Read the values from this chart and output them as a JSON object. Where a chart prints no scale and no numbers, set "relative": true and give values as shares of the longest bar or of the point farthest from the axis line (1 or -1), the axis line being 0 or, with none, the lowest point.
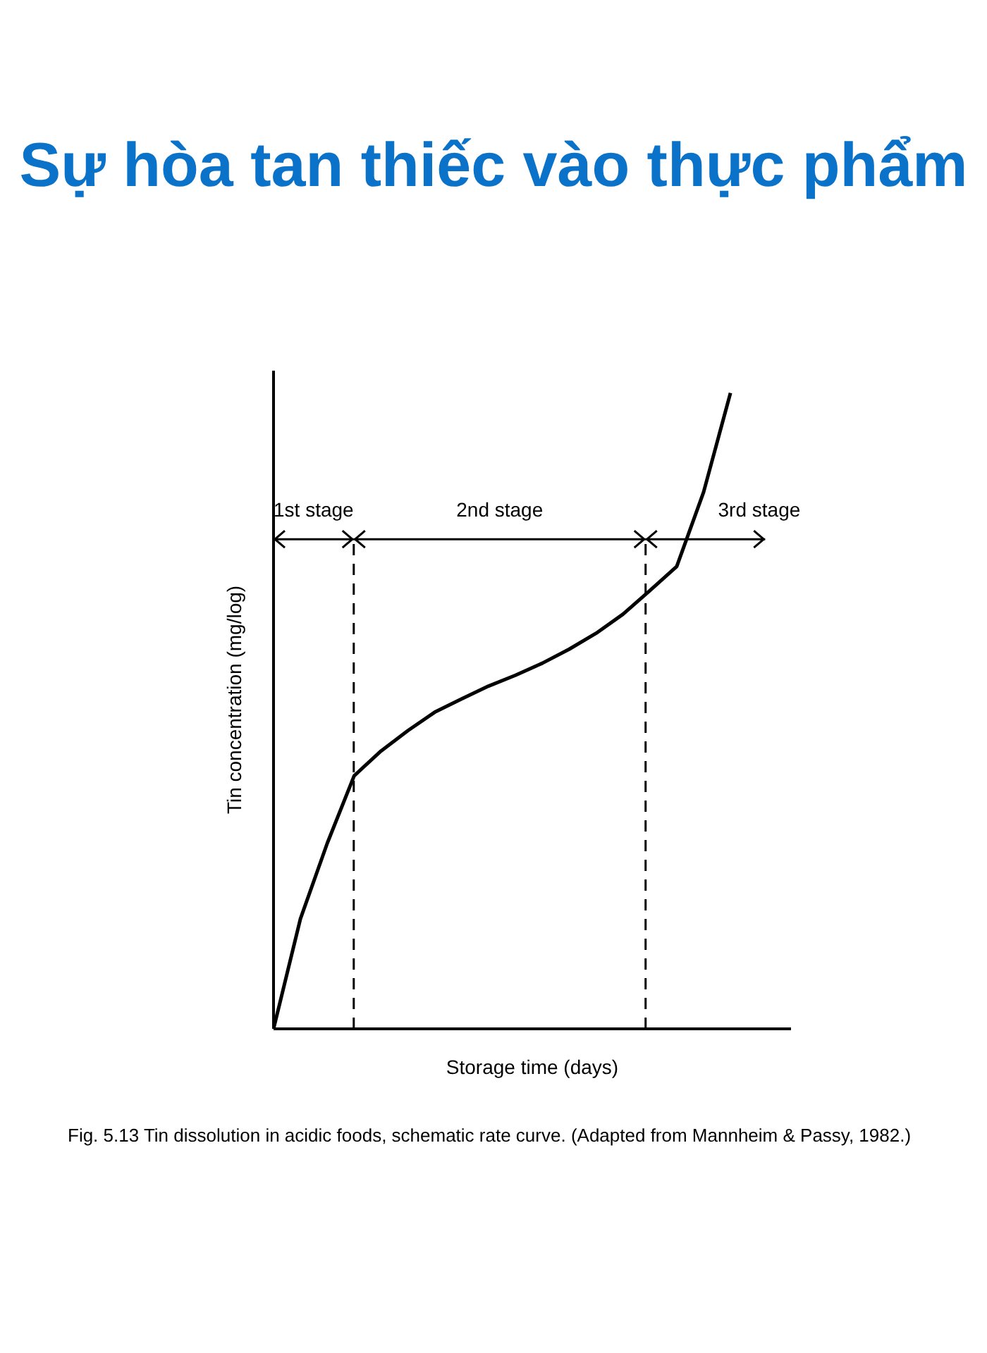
{
  "chart_data": {
    "type": "line",
    "title": "Sự hòa tan thiếc vào thực phẩm",
    "xlabel": "Storage time (days)",
    "ylabel": "Tin concentration (mg/log)",
    "relative": true,
    "grid": false,
    "legend": false,
    "marker": "none",
    "line_style": "solid",
    "categories": [
      null,
      null,
      null,
      null,
      null,
      null,
      null,
      null,
      null,
      null,
      null,
      null,
      null,
      null,
      null,
      null,
      null,
      null
    ],
    "series": [
      {
        "color": "#000000",
        "values": [
          0,
          0.173,
          0.292,
          0.398,
          0.437,
          0.469,
          0.498,
          0.519,
          0.539,
          0.556,
          0.575,
          0.597,
          0.622,
          0.652,
          0.689,
          0.727,
          0.844,
          1
        ]
      }
    ],
    "annotations": [
      "1st stage",
      "2nd stage",
      "3rd stage",
      "Fig. 5.13 Tin dissolution in acidic foods, schematic rate curve. (Adapted from Mannheim & Passy, 1982.)"
    ]
  }
}
